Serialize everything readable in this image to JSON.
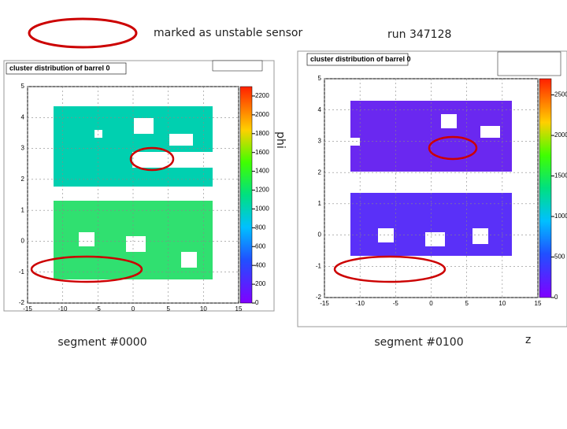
{
  "header": {
    "note": "marked  as unstable sensor",
    "run": "run 347128"
  },
  "axis_labels": {
    "y": "phi",
    "x": "z"
  },
  "plots": [
    {
      "title": "cluster distribution of barrel 0",
      "segment": "segment #0000",
      "xlim": [
        -15,
        15
      ],
      "ylim": [
        -2,
        5
      ],
      "xticks": [
        -15,
        -10,
        -5,
        0,
        5,
        10,
        15
      ],
      "yticks": [
        -2,
        -1,
        0,
        1,
        2,
        3,
        4,
        5
      ],
      "zlim": [
        0,
        2300
      ],
      "zticks": [
        0,
        200,
        400,
        600,
        800,
        1000,
        1200,
        1400,
        1600,
        1800,
        2000,
        2200
      ]
    },
    {
      "title": "cluster distribution of barrel 0",
      "segment": "segment #0100",
      "xlim": [
        -15,
        15
      ],
      "ylim": [
        -2,
        5
      ],
      "xticks": [
        -15,
        -10,
        -5,
        0,
        5,
        10,
        15
      ],
      "yticks": [
        -2,
        -1,
        0,
        1,
        2,
        3,
        4,
        5
      ],
      "zlim": [
        0,
        2700
      ],
      "zticks": [
        0,
        500,
        1000,
        1500,
        2000,
        2500
      ]
    }
  ]
}
